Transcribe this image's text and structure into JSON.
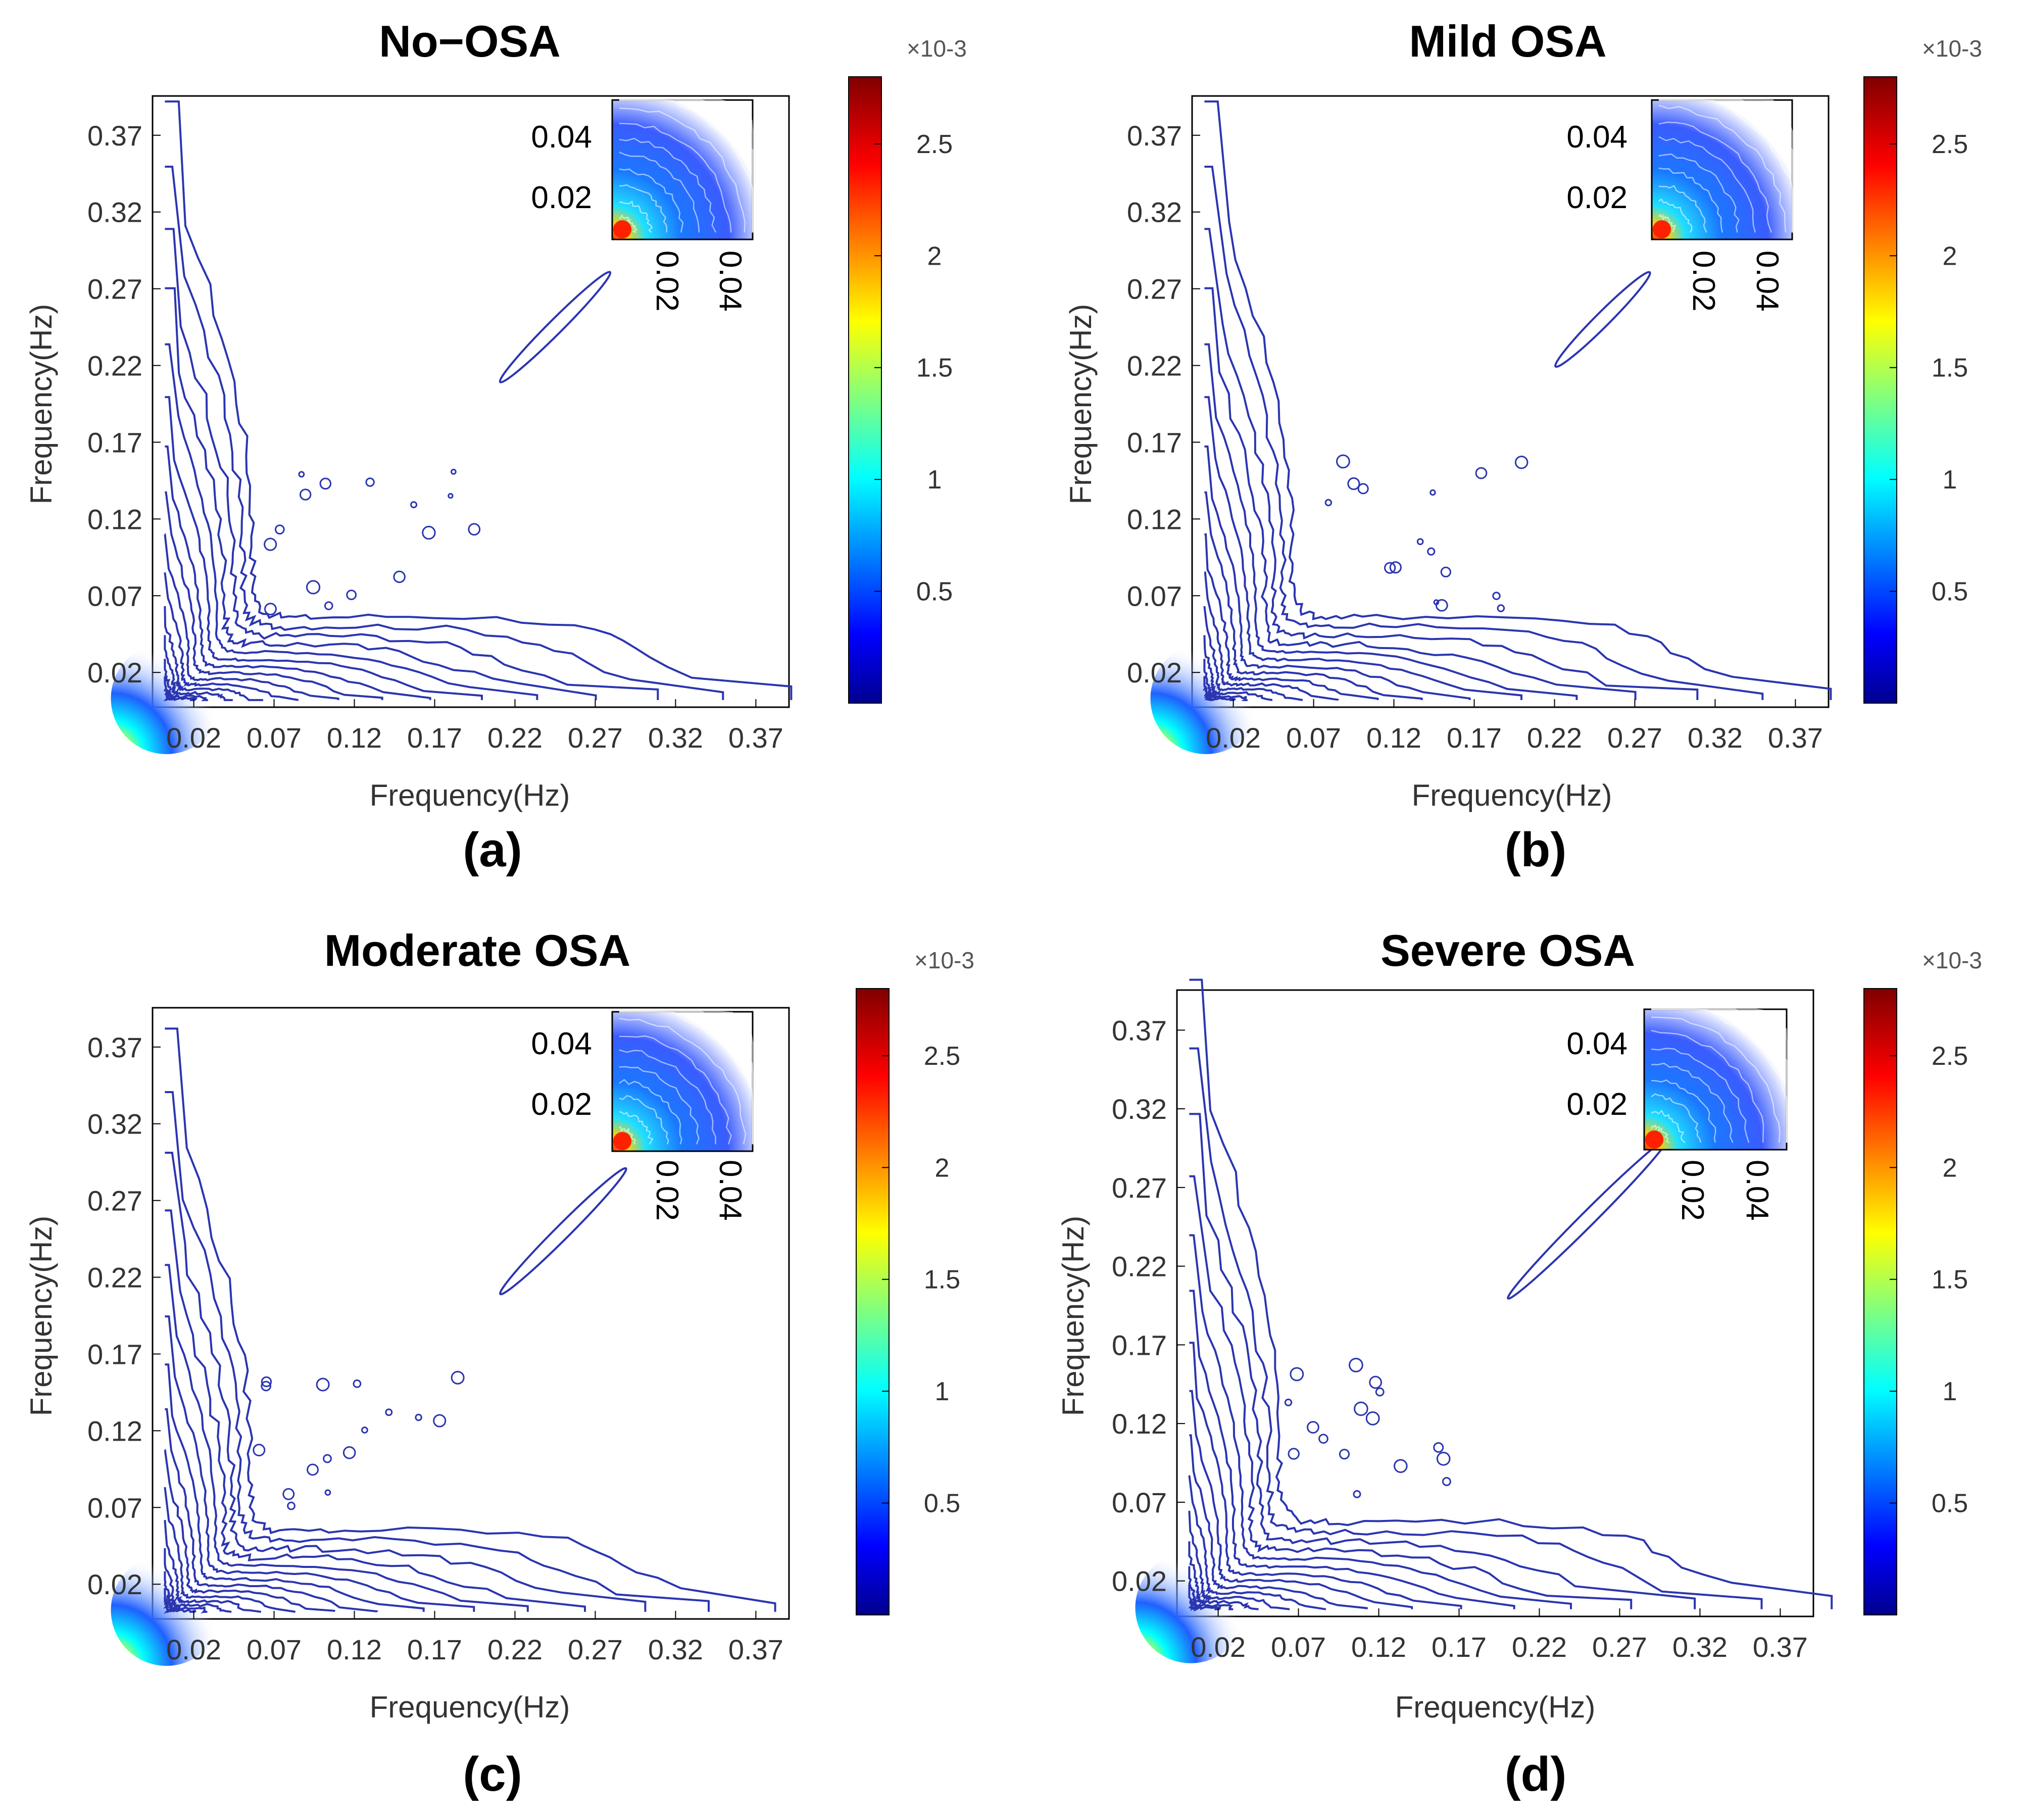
{
  "figure_caption_note": "",
  "chart_data": [
    {
      "type": "contour",
      "panel": "a",
      "title": "No−OSA",
      "caption": "(a)",
      "xlabel": "Frequency(Hz)",
      "ylabel": "Frequency(Hz)",
      "xticks": [
        "0.02",
        "0.07",
        "0.12",
        "0.17",
        "0.22",
        "0.27",
        "0.32",
        "0.37"
      ],
      "yticks": [
        "0.02",
        "0.07",
        "0.12",
        "0.17",
        "0.22",
        "0.27",
        "0.32",
        "0.37"
      ],
      "xlim": [
        0,
        0.39
      ],
      "ylim": [
        0,
        0.39
      ],
      "outer_contour_diagonal_extent": 0.38,
      "off_diagonal_islands": [
        {
          "from": 0.21,
          "to": 0.28
        }
      ],
      "inset": {
        "xticks": [
          "0.02",
          "0.04"
        ],
        "yticks": [
          "0.02",
          "0.04"
        ]
      },
      "colorbar": {
        "exponent": "×10-3",
        "ticks": [
          "0.5",
          "1",
          "1.5",
          "2",
          "2.5"
        ],
        "range": [
          0,
          2.8
        ],
        "colormap": "jet"
      }
    },
    {
      "type": "contour",
      "panel": "b",
      "title": "Mild OSA",
      "caption": "(b)",
      "xlabel": "Frequency(Hz)",
      "ylabel": "Frequency(Hz)",
      "xticks": [
        "0.02",
        "0.07",
        "0.12",
        "0.17",
        "0.22",
        "0.27",
        "0.32",
        "0.37"
      ],
      "yticks": [
        "0.02",
        "0.07",
        "0.12",
        "0.17",
        "0.22",
        "0.27",
        "0.32",
        "0.37"
      ],
      "xlim": [
        0,
        0.39
      ],
      "ylim": [
        0,
        0.39
      ],
      "outer_contour_diagonal_extent": 0.38,
      "off_diagonal_islands": [
        {
          "from": 0.22,
          "to": 0.28
        }
      ],
      "inset": {
        "xticks": [
          "0.02",
          "0.04"
        ],
        "yticks": [
          "0.02",
          "0.04"
        ]
      },
      "colorbar": {
        "exponent": "×10-3",
        "ticks": [
          "0.5",
          "1",
          "1.5",
          "2",
          "2.5"
        ],
        "range": [
          0,
          2.8
        ],
        "colormap": "jet"
      }
    },
    {
      "type": "contour",
      "panel": "c",
      "title": "Moderate OSA",
      "caption": "(c)",
      "xlabel": "Frequency(Hz)",
      "ylabel": "Frequency(Hz)",
      "xticks": [
        "0.02",
        "0.07",
        "0.12",
        "0.17",
        "0.22",
        "0.27",
        "0.32",
        "0.37"
      ],
      "yticks": [
        "0.02",
        "0.07",
        "0.12",
        "0.17",
        "0.22",
        "0.27",
        "0.32",
        "0.37"
      ],
      "xlim": [
        0,
        0.39
      ],
      "ylim": [
        0,
        0.39
      ],
      "outer_contour_diagonal_extent": 0.37,
      "off_diagonal_islands": [
        {
          "from": 0.21,
          "to": 0.29
        }
      ],
      "inset": {
        "xticks": [
          "0.02",
          "0.04"
        ],
        "yticks": [
          "0.02",
          "0.04"
        ]
      },
      "colorbar": {
        "exponent": "×10-3",
        "ticks": [
          "0.5",
          "1",
          "1.5",
          "2",
          "2.5"
        ],
        "range": [
          0,
          2.8
        ],
        "colormap": "jet"
      }
    },
    {
      "type": "contour",
      "panel": "d",
      "title": "Severe OSA",
      "caption": "(d)",
      "xlabel": "Frequency(Hz)",
      "ylabel": "Frequency(Hz)",
      "xticks": [
        "0.02",
        "0.07",
        "0.12",
        "0.17",
        "0.22",
        "0.27",
        "0.32",
        "0.37"
      ],
      "yticks": [
        "0.02",
        "0.07",
        "0.12",
        "0.17",
        "0.22",
        "0.27",
        "0.32",
        "0.37"
      ],
      "xlim": [
        0,
        0.39
      ],
      "ylim": [
        0,
        0.39
      ],
      "outer_contour_diagonal_extent": 0.39,
      "off_diagonal_islands": [
        {
          "from": 0.2,
          "to": 0.3
        }
      ],
      "inset": {
        "xticks": [
          "0.02",
          "0.04"
        ],
        "yticks": [
          "0.02",
          "0.04"
        ]
      },
      "colorbar": {
        "exponent": "×10-3",
        "ticks": [
          "0.5",
          "1",
          "1.5",
          "2",
          "2.5"
        ],
        "range": [
          0,
          2.8
        ],
        "colormap": "jet"
      }
    }
  ]
}
